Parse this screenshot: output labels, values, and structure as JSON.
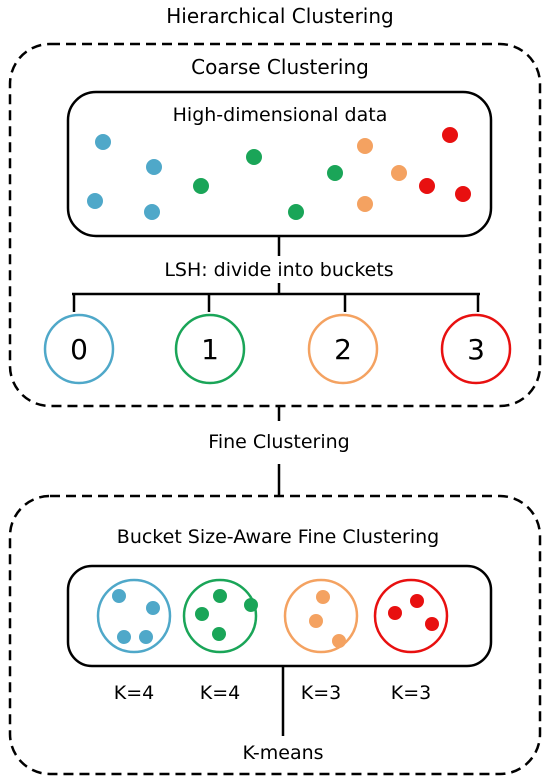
{
  "title": "Hierarchical Clustering",
  "coarse": {
    "title": "Coarse Clustering",
    "data_box_label": "High-dimensional data",
    "lsh_label": "LSH: divide into buckets",
    "buckets": [
      {
        "label": "0",
        "color": "#4FA8C9"
      },
      {
        "label": "1",
        "color": "#1AA558"
      },
      {
        "label": "2",
        "color": "#F4A261"
      },
      {
        "label": "3",
        "color": "#E81010"
      }
    ]
  },
  "fine_label": "Fine Clustering",
  "fine": {
    "title": "Bucket Size-Aware Fine Clustering",
    "clusters": [
      {
        "k_label": "K=4",
        "color": "#4FA8C9"
      },
      {
        "k_label": "K=4",
        "color": "#1AA558"
      },
      {
        "k_label": "K=3",
        "color": "#F4A261"
      },
      {
        "k_label": "K=3",
        "color": "#E81010"
      }
    ],
    "method_label": "K-means"
  },
  "colors": {
    "blue": "#4FA8C9",
    "green": "#1AA558",
    "orange": "#F4A261",
    "red": "#E81010"
  }
}
